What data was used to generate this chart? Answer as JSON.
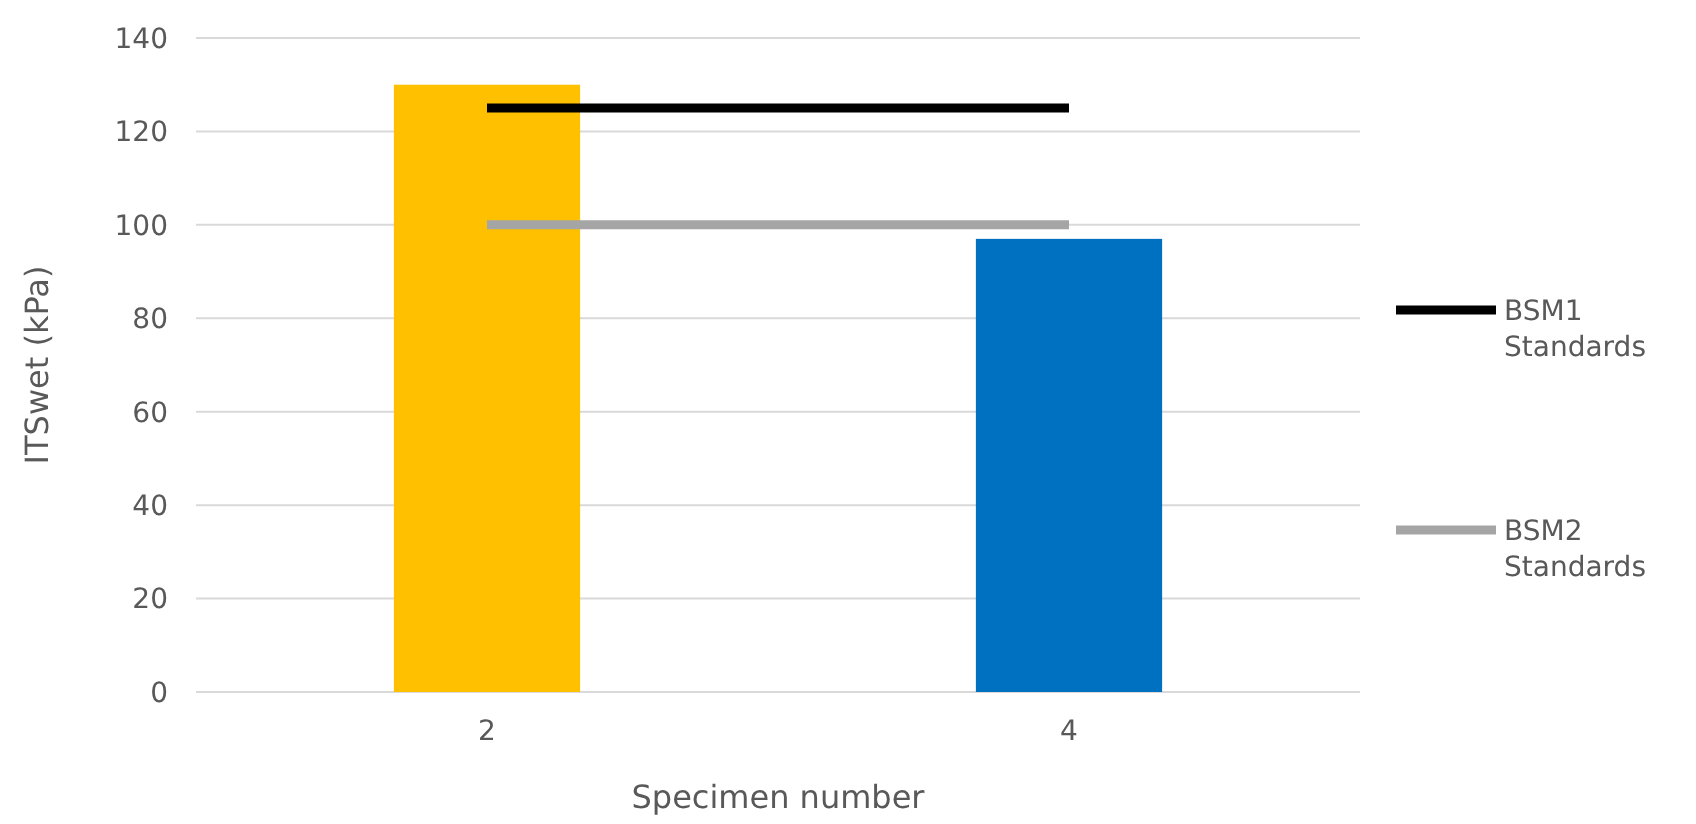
{
  "chart_data": {
    "type": "bar",
    "xlabel": "Specimen number",
    "ylabel": "ITSwet (kPa)",
    "categories": [
      "2",
      "4"
    ],
    "series": [
      {
        "colors": [
          "#ffc000",
          "#0070c0"
        ],
        "values": [
          130,
          97
        ]
      },
      {
        "type": "line",
        "name": "BSM1 Standards",
        "color": "#000000",
        "values": [
          125,
          125
        ]
      },
      {
        "type": "line",
        "name": "BSM2 Standards",
        "color": "#a5a5a5",
        "values": [
          100,
          100
        ]
      }
    ],
    "ylim": [
      0,
      140
    ],
    "yticks": [
      0,
      20,
      40,
      60,
      80,
      100,
      120,
      140
    ],
    "grid": "y",
    "legend": "right",
    "marker": "none",
    "line_style": "solid"
  }
}
